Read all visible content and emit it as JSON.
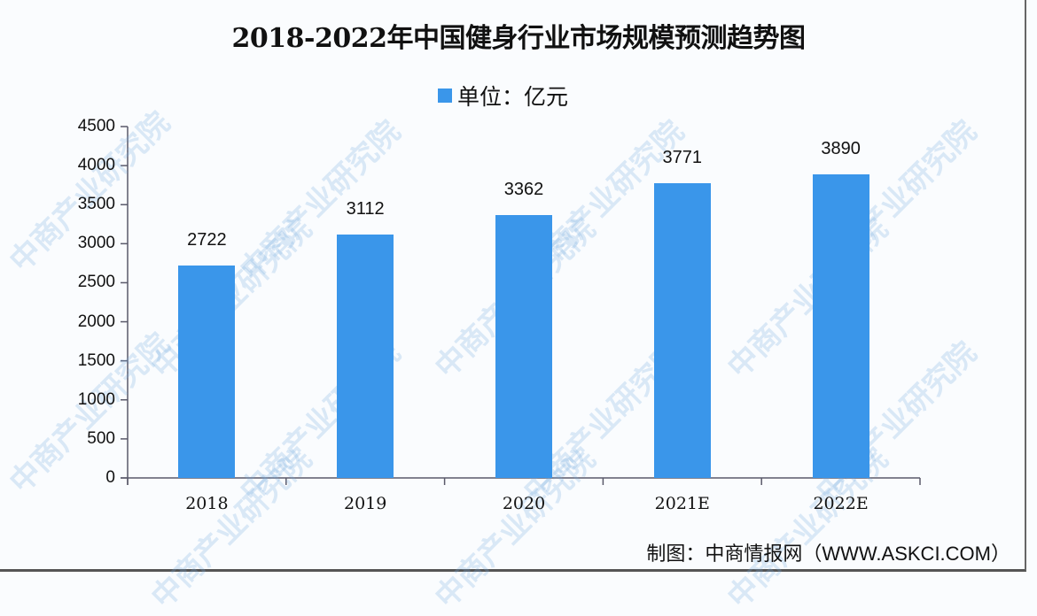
{
  "title": "2018-2022年中国健身行业市场规模预测趋势图",
  "legend": {
    "label": "单位：亿元",
    "color": "#3a96ea"
  },
  "source": "制图：中商情报网（WWW.ASKCI.COM）",
  "watermark": "中商产业研究院",
  "chart_data": {
    "type": "bar",
    "title": "2018-2022年中国健身行业市场规模预测趋势图",
    "xlabel": "",
    "ylabel": "",
    "unit": "亿元",
    "categories": [
      "2018",
      "2019",
      "2020",
      "2021E",
      "2022E"
    ],
    "values": [
      2722,
      3112,
      3362,
      3771,
      3890
    ],
    "series": [
      {
        "name": "单位：亿元",
        "values": [
          2722,
          3112,
          3362,
          3771,
          3890
        ],
        "color": "#3a96ea"
      }
    ],
    "ylim": [
      0,
      4500
    ],
    "yticks": [
      0,
      500,
      1000,
      1500,
      2000,
      2500,
      3000,
      3500,
      4000,
      4500
    ],
    "grid": false,
    "legend_position": "top",
    "data_labels": [
      "2722",
      "3112",
      "3362",
      "3771",
      "3890"
    ]
  }
}
